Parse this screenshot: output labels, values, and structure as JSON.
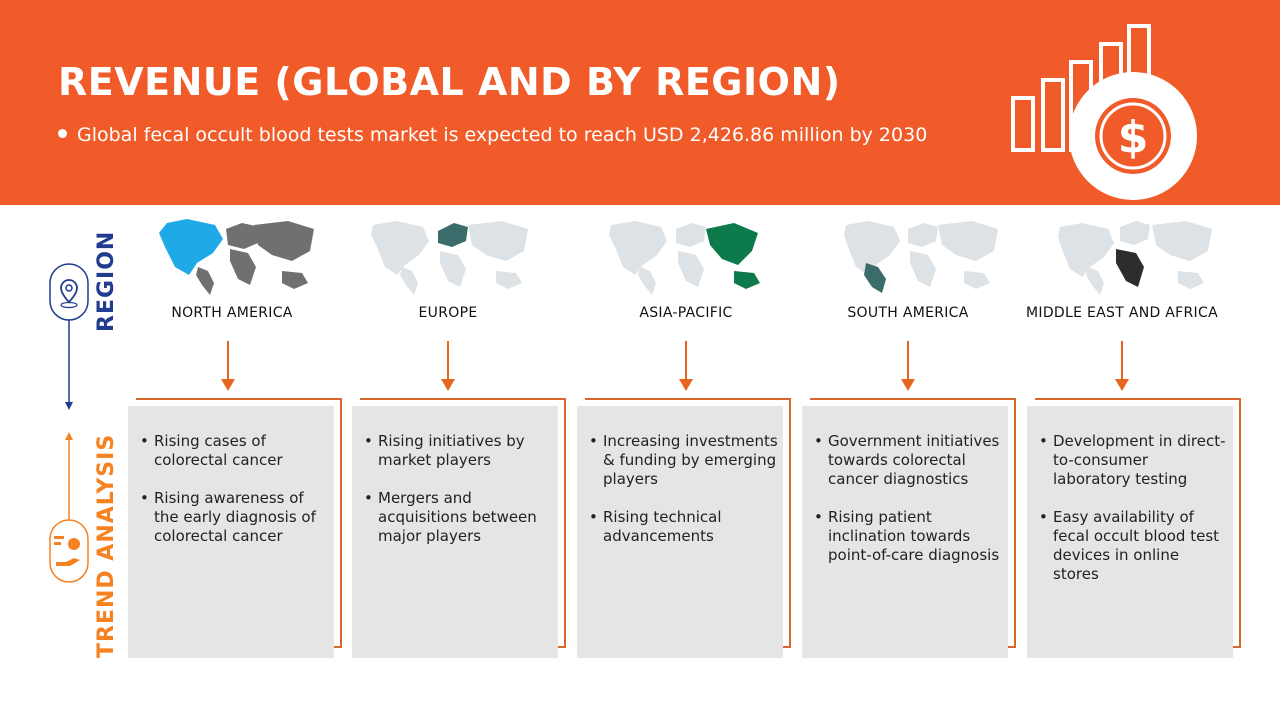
{
  "header": {
    "title": "REVENUE (GLOBAL AND BY REGION)",
    "subtitle": "Global fecal occult blood tests market is expected to reach USD 2,426.86 million by 2030",
    "graphic_icon": "bar-chart-dollar-icon"
  },
  "side": {
    "region_label": "REGION",
    "trend_label": "TREND ANALYSIS",
    "region_icon": "location-pin-icon",
    "trend_icon": "hand-analysis-icon"
  },
  "colors": {
    "header_bg": "#f15a29",
    "region_blue": "#1f3c8f",
    "trend_orange": "#f58220",
    "card_bg": "#e5e5e5",
    "card_border": "#d9662b",
    "map_base": "#dde2e6",
    "map_base_dark": "#707070"
  },
  "regions": [
    {
      "name": "NORTH AMERICA",
      "highlight": "#1fa9e6",
      "trends": [
        "Rising cases of colorectal cancer",
        "Rising awareness of the early diagnosis of colorectal cancer"
      ]
    },
    {
      "name": "EUROPE",
      "highlight": "#3b6b6b",
      "trends": [
        "Rising initiatives by market players",
        "Mergers and acquisitions between major players"
      ]
    },
    {
      "name": "ASIA-PACIFIC",
      "highlight": "#0c7a4a",
      "trends": [
        "Increasing investments & funding by emerging players",
        "Rising technical advancements"
      ]
    },
    {
      "name": "SOUTH AMERICA",
      "highlight": "#3b6b6b",
      "trends": [
        "Government initiatives towards colorectal cancer diagnostics",
        "Rising patient inclination towards point-of-care diagnosis"
      ]
    },
    {
      "name": "MIDDLE EAST AND AFRICA",
      "highlight": "#2d2d2d",
      "trends": [
        "Development in direct-to-consumer laboratory testing",
        "Easy availability of fecal occult blood test devices in online stores"
      ]
    }
  ]
}
